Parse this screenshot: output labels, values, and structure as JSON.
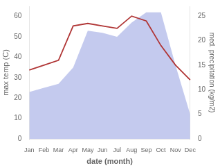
{
  "chart_data": {
    "type": "line",
    "xlabel": "date (month)",
    "ylabel": "max temp (C)",
    "y2label": "med. precipitation (kg/m2)",
    "categories": [
      "Jan",
      "Feb",
      "Mar",
      "Apr",
      "May",
      "Jun",
      "Jul",
      "Aug",
      "Sep",
      "Oct",
      "Nov",
      "Dec"
    ],
    "series": [
      {
        "type": "area",
        "color": "#b0b8e8",
        "values": [
          23,
          25,
          27,
          35,
          53,
          52,
          50,
          57,
          62,
          62,
          36,
          12
        ]
      },
      {
        "type": "line",
        "color": "#b03535",
        "axis": "y2",
        "values": [
          14,
          15,
          16,
          23,
          23.5,
          23,
          22.5,
          25,
          24,
          19,
          15,
          12
        ]
      }
    ],
    "ylim": [
      0,
      65
    ],
    "yticks": [
      0,
      10,
      20,
      30,
      40,
      50,
      60
    ],
    "y2lim": [
      0,
      27
    ],
    "y2ticks": [
      0,
      5,
      10,
      15,
      20,
      25
    ],
    "grid": false
  }
}
